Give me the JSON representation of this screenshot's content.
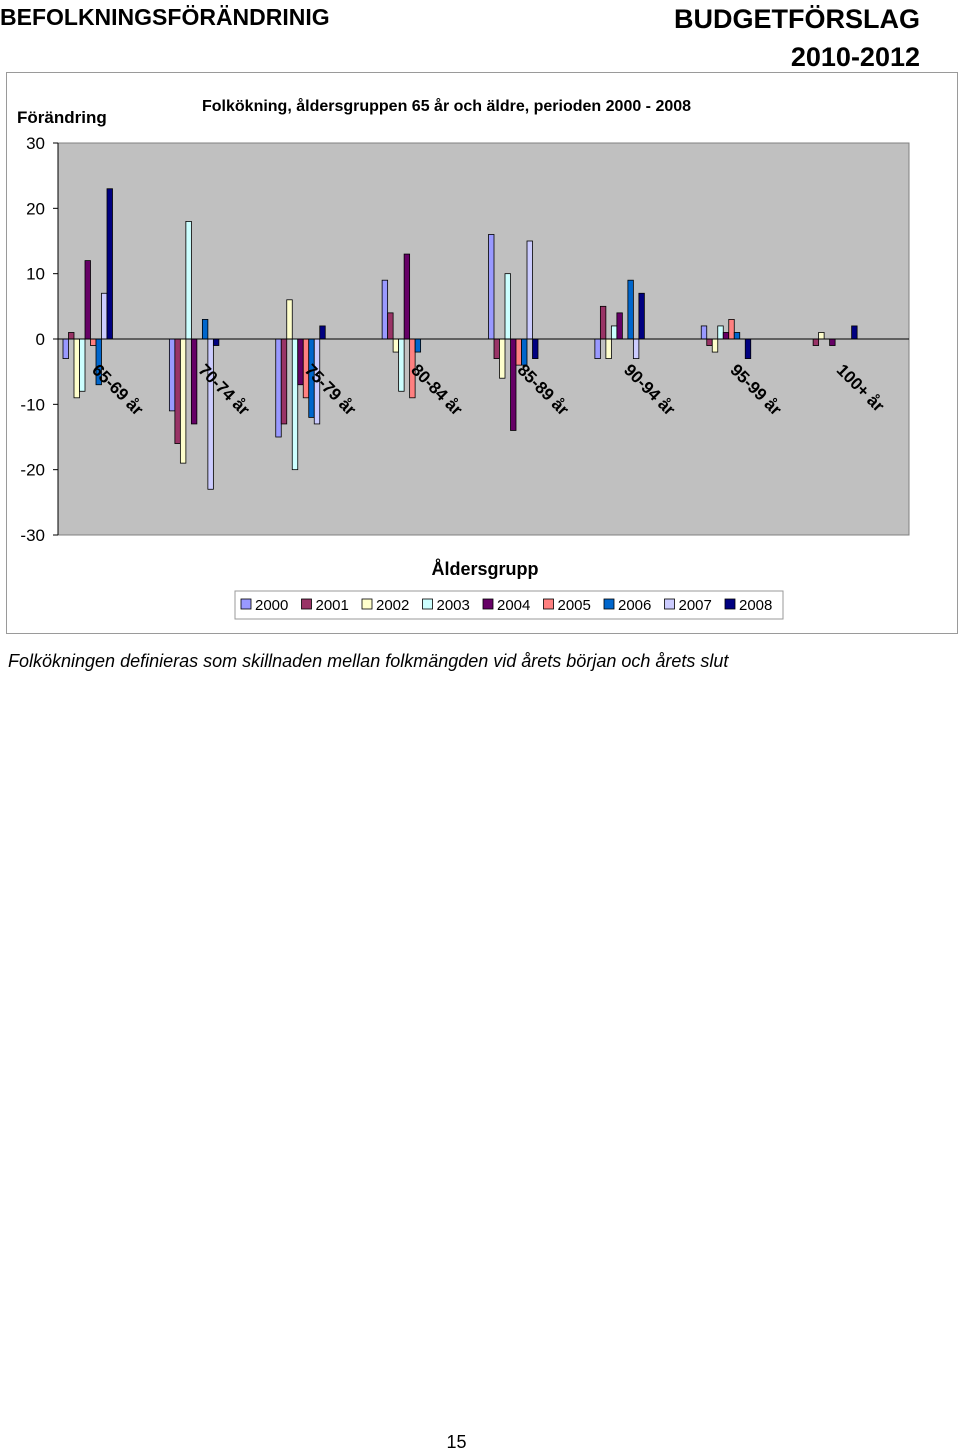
{
  "header": {
    "left_title": "BEFOLKNINGSFÖRÄNDRINIG",
    "right_title": "BUDGETFÖRSLAG",
    "right_years": "2010-2012"
  },
  "chart_data": {
    "type": "bar",
    "title": "Folkökning, åldersgruppen 65 år och äldre, perioden 2000 - 2008",
    "ylabel": "Förändring",
    "xlabel": "Åldersgrupp",
    "ylim": [
      -30,
      30
    ],
    "yticks": [
      30,
      20,
      10,
      0,
      -10,
      -20,
      -30
    ],
    "grid": false,
    "legend_position": "bottom",
    "categories": [
      "65-69 år",
      "70-74 år",
      "75-79 år",
      "80-84 år",
      "85-89 år",
      "90-94 år",
      "95-99 år",
      "100+ år"
    ],
    "series": [
      {
        "name": "2000",
        "color": "#9999ff",
        "values": [
          -3,
          -11,
          -15,
          9,
          16,
          -3,
          2,
          0
        ]
      },
      {
        "name": "2001",
        "color": "#993366",
        "values": [
          1,
          -16,
          -13,
          4,
          -3,
          5,
          -1,
          -1
        ]
      },
      {
        "name": "2002",
        "color": "#ffffcc",
        "values": [
          -9,
          -19,
          6,
          -2,
          -6,
          -3,
          -2,
          1
        ]
      },
      {
        "name": "2003",
        "color": "#ccffff",
        "values": [
          -8,
          18,
          -20,
          -8,
          10,
          2,
          2,
          0
        ]
      },
      {
        "name": "2004",
        "color": "#660066",
        "values": [
          12,
          -13,
          -7,
          13,
          -14,
          4,
          1,
          -1
        ]
      },
      {
        "name": "2005",
        "color": "#ff8080",
        "values": [
          -1,
          0,
          -9,
          -9,
          -4,
          0,
          3,
          0
        ]
      },
      {
        "name": "2006",
        "color": "#0066cc",
        "values": [
          -7,
          3,
          -12,
          -2,
          -4,
          9,
          1,
          0
        ]
      },
      {
        "name": "2007",
        "color": "#ccccff",
        "values": [
          7,
          -23,
          -13,
          0,
          15,
          -3,
          0,
          0
        ]
      },
      {
        "name": "2008",
        "color": "#000080",
        "values": [
          23,
          -1,
          2,
          0,
          -3,
          7,
          -3,
          2
        ]
      }
    ]
  },
  "footnote": "Folkökningen definieras som skillnaden mellan folkmängden vid årets början och årets slut",
  "page_number": "15"
}
